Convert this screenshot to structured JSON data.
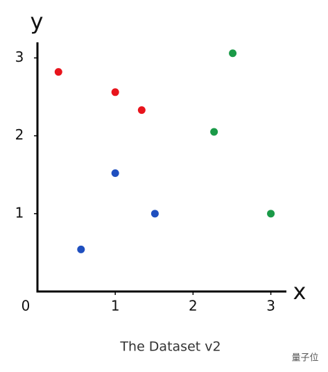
{
  "chart_data": {
    "type": "scatter",
    "title": "The Dataset v2",
    "x_label": "x",
    "y_label": "y",
    "series": [
      {
        "color": "#e8141c",
        "x": [
          0.27,
          1.0,
          1.34
        ],
        "values": [
          2.82,
          2.56,
          2.33
        ]
      },
      {
        "color": "#1f4fbf",
        "x": [
          0.56,
          1.0,
          1.51
        ],
        "values": [
          0.54,
          1.52,
          1.0
        ]
      },
      {
        "color": "#1a9a48",
        "x": [
          2.51,
          2.27,
          3.0
        ],
        "values": [
          3.06,
          2.05,
          1.0
        ]
      }
    ],
    "xlim": [
      0,
      3.2
    ],
    "ylim": [
      0,
      3.2
    ],
    "xticks": [
      0,
      1,
      2,
      3
    ],
    "yticks": [
      1,
      2,
      3
    ],
    "grid": false
  },
  "watermark": "量子位"
}
